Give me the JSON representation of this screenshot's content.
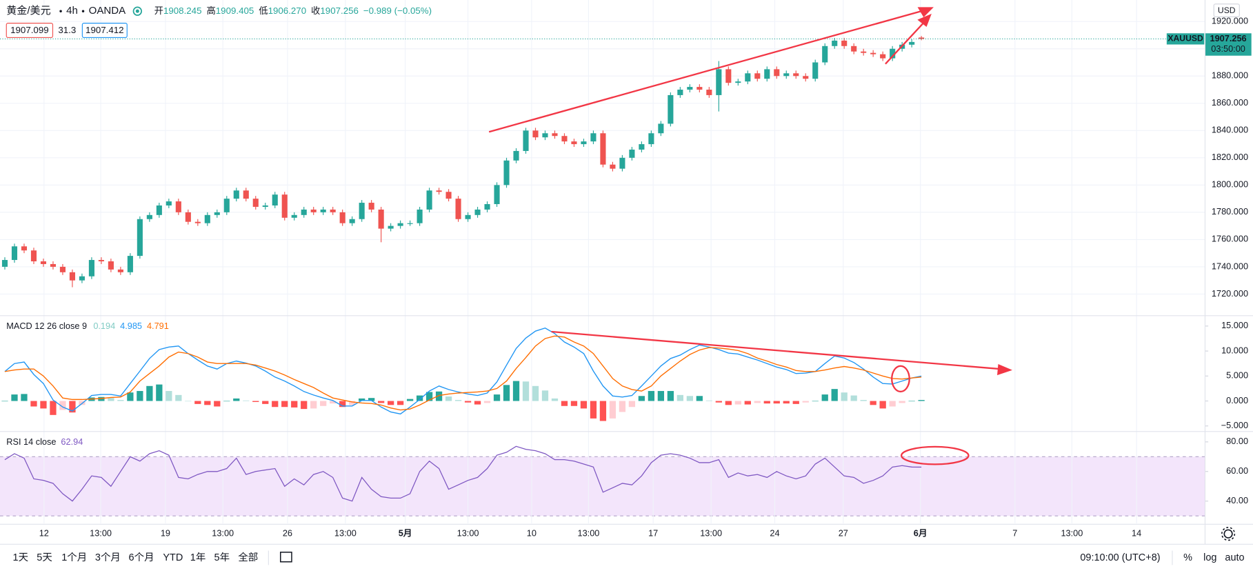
{
  "header": {
    "symbol": "黄金/美元",
    "interval": "4h",
    "source": "OANDA",
    "ohlc": [
      {
        "label": "开",
        "value": "1908.245"
      },
      {
        "label": "高",
        "value": "1909.405"
      },
      {
        "label": "低",
        "value": "1906.270"
      },
      {
        "label": "收",
        "value": "1907.256"
      }
    ],
    "change": "−0.989 (−0.05%)",
    "bid": "1907.099",
    "spread": "31.3",
    "ask": "1907.412"
  },
  "price_axis": {
    "currency": "USD",
    "symbol_tag": "XAUUSD",
    "countdown": "03:50:00"
  },
  "toolbar": {
    "ranges": [
      "1天",
      "5天",
      "1个月",
      "3个月",
      "6个月",
      "YTD",
      "1年",
      "5年",
      "全部"
    ],
    "time": "09:10:00 (UTC+8)",
    "options": [
      "%",
      "log",
      "auto"
    ]
  },
  "chart_data": [
    {
      "type": "candlestick",
      "up_color": "#26a69a",
      "down_color": "#ef5350",
      "grid": true,
      "xlim": [
        -0.5,
        124.4
      ],
      "xticks": [
        {
          "value": 4.06,
          "label": "12"
        },
        {
          "value": 9.94,
          "label": "13:00"
        },
        {
          "value": 16.65,
          "label": "19"
        },
        {
          "value": 22.6,
          "label": "13:00"
        },
        {
          "value": 29.3,
          "label": "26"
        },
        {
          "value": 35.3,
          "label": "13:00"
        },
        {
          "value": 41.5,
          "label": "5月"
        },
        {
          "value": 48.0,
          "label": "13:00"
        },
        {
          "value": 54.6,
          "label": "10"
        },
        {
          "value": 60.5,
          "label": "13:00"
        },
        {
          "value": 67.2,
          "label": "17"
        },
        {
          "value": 73.2,
          "label": "13:00"
        },
        {
          "value": 79.8,
          "label": "24"
        },
        {
          "value": 86.9,
          "label": "27"
        },
        {
          "value": 94.9,
          "label": "6月"
        },
        {
          "value": 104.7,
          "label": "7"
        },
        {
          "value": 110.6,
          "label": "13:00"
        },
        {
          "value": 117.3,
          "label": "14"
        }
      ],
      "ylim": [
        1705.3,
        1935.8
      ],
      "yticks": [
        {
          "value": 1720,
          "label": "1720.000"
        },
        {
          "value": 1740,
          "label": "1740.000"
        },
        {
          "value": 1760,
          "label": "1760.000"
        },
        {
          "value": 1780,
          "label": "1780.000"
        },
        {
          "value": 1800,
          "label": "1800.000"
        },
        {
          "value": 1820,
          "label": "1820.000"
        },
        {
          "value": 1840,
          "label": "1840.000"
        },
        {
          "value": 1860,
          "label": "1860.000"
        },
        {
          "value": 1880,
          "label": "1880.000"
        },
        {
          "value": 1900,
          "label": "1900.000"
        },
        {
          "value": 1920,
          "label": "1920.000"
        }
      ],
      "open": [
        1740,
        1745,
        1755,
        1752,
        1744,
        1742,
        1740,
        1736,
        1730,
        1733,
        1745,
        1744,
        1738,
        1736,
        1748,
        1775,
        1778,
        1785,
        1788,
        1780,
        1773,
        1772,
        1778,
        1780,
        1790,
        1796,
        1790,
        1784,
        1785,
        1793,
        1776,
        1778,
        1782,
        1780,
        1782,
        1780,
        1772,
        1775,
        1787,
        1782,
        1768,
        1770,
        1772,
        1772,
        1782,
        1796,
        1795,
        1790,
        1775,
        1778,
        1782,
        1786,
        1800,
        1818,
        1825,
        1840,
        1835,
        1838,
        1836,
        1832,
        1830,
        1832,
        1838,
        1815,
        1812,
        1820,
        1826,
        1830,
        1838,
        1845,
        1866,
        1870,
        1872,
        1870,
        1866,
        1885,
        1875,
        1876,
        1882,
        1878,
        1885,
        1880,
        1882,
        1880,
        1878,
        1890,
        1902,
        1906,
        1902,
        1898,
        1897,
        1896,
        1893,
        1900,
        1903,
        1908.245
      ],
      "high": [
        1747,
        1757,
        1757,
        1754,
        1746,
        1744,
        1742,
        1738,
        1735,
        1747,
        1747,
        1746,
        1740,
        1750,
        1777,
        1780,
        1787,
        1790,
        1790,
        1782,
        1775,
        1780,
        1782,
        1792,
        1798,
        1798,
        1792,
        1787,
        1795,
        1795,
        1780,
        1784,
        1784,
        1784,
        1784,
        1782,
        1777,
        1789,
        1789,
        1784,
        1772,
        1774,
        1774,
        1784,
        1798,
        1798,
        1797,
        1792,
        1780,
        1784,
        1788,
        1802,
        1820,
        1827,
        1842,
        1842,
        1840,
        1840,
        1838,
        1834,
        1834,
        1840,
        1840,
        1817,
        1822,
        1828,
        1832,
        1840,
        1847,
        1868,
        1872,
        1874,
        1874,
        1872,
        1891,
        1887,
        1878,
        1884,
        1884,
        1887,
        1887,
        1884,
        1884,
        1882,
        1892,
        1904,
        1908,
        1908,
        1904,
        1900,
        1899,
        1898,
        1902,
        1905,
        1907,
        1909.405
      ],
      "low": [
        1738,
        1743,
        1750,
        1742,
        1740,
        1738,
        1734,
        1725,
        1728,
        1731,
        1742,
        1736,
        1734,
        1734,
        1746,
        1773,
        1776,
        1783,
        1778,
        1771,
        1770,
        1770,
        1776,
        1778,
        1788,
        1788,
        1782,
        1782,
        1783,
        1774,
        1774,
        1776,
        1778,
        1778,
        1778,
        1770,
        1770,
        1773,
        1780,
        1758,
        1766,
        1768,
        1770,
        1770,
        1780,
        1793,
        1788,
        1773,
        1773,
        1776,
        1780,
        1784,
        1798,
        1816,
        1823,
        1833,
        1833,
        1834,
        1830,
        1828,
        1828,
        1830,
        1813,
        1810,
        1810,
        1818,
        1824,
        1828,
        1836,
        1843,
        1864,
        1868,
        1868,
        1864,
        1854,
        1873,
        1873,
        1874,
        1876,
        1876,
        1878,
        1878,
        1878,
        1876,
        1876,
        1888,
        1900,
        1900,
        1896,
        1895,
        1894,
        1891,
        1891,
        1898,
        1901,
        1906.27
      ],
      "close": [
        1745,
        1755,
        1752,
        1744,
        1742,
        1740,
        1736,
        1730,
        1733,
        1745,
        1744,
        1738,
        1736,
        1748,
        1775,
        1778,
        1785,
        1788,
        1780,
        1773,
        1772,
        1778,
        1780,
        1790,
        1796,
        1790,
        1784,
        1785,
        1793,
        1776,
        1778,
        1782,
        1780,
        1782,
        1780,
        1772,
        1775,
        1787,
        1782,
        1768,
        1770,
        1772,
        1772,
        1782,
        1796,
        1795,
        1790,
        1775,
        1778,
        1782,
        1786,
        1800,
        1818,
        1825,
        1840,
        1835,
        1838,
        1836,
        1832,
        1830,
        1832,
        1838,
        1815,
        1812,
        1820,
        1826,
        1830,
        1838,
        1845,
        1866,
        1870,
        1872,
        1870,
        1866,
        1885,
        1875,
        1876,
        1882,
        1878,
        1885,
        1880,
        1882,
        1880,
        1878,
        1890,
        1902,
        1906,
        1902,
        1898,
        1897,
        1896,
        1893,
        1900,
        1903,
        1905,
        1907.256
      ]
    },
    {
      "type": "combo",
      "title": "MACD 12 26 close 9",
      "ylim": [
        -6.12,
        16.76
      ],
      "yticks": [
        {
          "value": -5,
          "label": "−5.000"
        },
        {
          "value": 0,
          "label": "0.000"
        },
        {
          "value": 5,
          "label": "5.000"
        },
        {
          "value": 10,
          "label": "10.000"
        },
        {
          "value": 15,
          "label": "15.000"
        }
      ],
      "histogram": {
        "colors": [
          "#26a69a",
          "#b2dfdb",
          "#ff5252",
          "#ffcdd2"
        ],
        "label_color": "#80cbc4",
        "values": [
          0,
          1.3,
          1.4,
          -1.1,
          -1.5,
          -2.8,
          -1.8,
          -2.3,
          -0.8,
          0.7,
          0.8,
          0.6,
          0.2,
          1.7,
          2,
          3,
          3.3,
          2,
          1.2,
          0,
          -0.6,
          -0.8,
          -1.1,
          0,
          0.5,
          0.1,
          -0.2,
          -0.6,
          -1.2,
          -1.2,
          -1.3,
          -1.6,
          -1.5,
          -1,
          -0.5,
          -1.2,
          -0.8,
          0.5,
          0.6,
          -0.4,
          -0.8,
          -0.8,
          0.4,
          1.1,
          1.8,
          1.9,
          0.9,
          0.2,
          -0.3,
          -0.7,
          -0.4,
          1.3,
          3.2,
          4,
          3.9,
          3,
          2.1,
          0.5,
          -1,
          -1,
          -1.5,
          -3.5,
          -4,
          -3.5,
          -2.2,
          -1.2,
          1,
          2,
          2,
          2,
          1.2,
          1,
          1,
          0.1,
          -0.3,
          -0.8,
          -0.7,
          -0.7,
          -0.4,
          -0.5,
          -0.5,
          -0.5,
          -0.6,
          -0.3,
          0,
          1.3,
          2.4,
          1.7,
          1.1,
          0.2,
          -0.8,
          -1.5,
          -1.1,
          -0.4,
          0,
          0.194
        ]
      },
      "series": [
        {
          "color": "#2196f3",
          "values": [
            5.9,
            7.5,
            7.8,
            5.3,
            3.5,
            0.2,
            -1.2,
            -2,
            -0.5,
            1.1,
            1.3,
            1.3,
            1,
            3.5,
            6,
            8.5,
            10.3,
            10.8,
            11,
            9.5,
            8.2,
            7,
            6.4,
            7.5,
            8,
            7.6,
            7,
            6,
            4.8,
            4,
            3,
            1.9,
            1.2,
            0.6,
            0.1,
            -1,
            -1,
            0.1,
            0.1,
            -1.2,
            -2.2,
            -2.6,
            -1.2,
            0.3,
            2,
            3,
            2.3,
            1.8,
            1.4,
            1.1,
            1.6,
            3.8,
            7.2,
            10.5,
            12.6,
            14,
            14.6,
            13.5,
            11.8,
            10.8,
            9.5,
            6,
            3,
            1,
            0.8,
            1.1,
            3,
            5,
            7,
            8.5,
            9.2,
            10.3,
            11.2,
            10.8,
            10.3,
            9.6,
            9.4,
            8.8,
            8.2,
            7.5,
            6.8,
            6.3,
            5.5,
            5.6,
            5.9,
            7.5,
            9,
            8.6,
            7.7,
            6.4,
            4.8,
            3.5,
            3.4,
            4,
            4.6,
            4.985
          ]
        },
        {
          "color": "#ff6d00",
          "values": [
            5.9,
            6.2,
            6.4,
            6.4,
            5,
            3,
            0.6,
            0.3,
            0.3,
            0.4,
            0.5,
            0.7,
            0.8,
            1.8,
            4,
            5.5,
            7,
            8.8,
            9.8,
            9.5,
            8.8,
            7.8,
            7.5,
            7.5,
            7.5,
            7.5,
            7.2,
            6.6,
            6,
            5.2,
            4.3,
            3.5,
            2.7,
            1.6,
            0.6,
            0.2,
            -0.2,
            -0.4,
            -0.5,
            -0.8,
            -1.4,
            -1.8,
            -1.6,
            -0.8,
            0.2,
            1.1,
            1.4,
            1.6,
            1.7,
            1.8,
            2,
            2.5,
            4,
            6.5,
            8.7,
            11,
            12.5,
            13,
            12.8,
            11.8,
            11,
            9.5,
            7,
            4.5,
            3,
            2.3,
            2,
            3,
            5,
            6.5,
            8,
            9.3,
            10.2,
            10.7,
            10.6,
            10.4,
            10.1,
            9.5,
            8.6,
            8,
            7.3,
            6.8,
            6.1,
            5.9,
            5.9,
            6.2,
            6.6,
            6.9,
            6.6,
            6.2,
            5.6,
            5,
            4.5,
            4.4,
            4.6,
            4.791
          ]
        }
      ]
    },
    {
      "type": "line",
      "title": "RSI 14 close",
      "color": "#7e57c2",
      "band": [
        30,
        70
      ],
      "band_color": "#f3e5fb",
      "ylim": [
        24.9,
        85.9
      ],
      "yticks": [
        {
          "value": 40,
          "label": "40.00"
        },
        {
          "value": 60,
          "label": "60.00"
        },
        {
          "value": 80,
          "label": "80.00"
        }
      ],
      "values": [
        68,
        72,
        69,
        55,
        54,
        52,
        45,
        40,
        48,
        57,
        56,
        50,
        60,
        70,
        67,
        72,
        74,
        71,
        56,
        55,
        58,
        60,
        60,
        62,
        69,
        58,
        60,
        61,
        62,
        50,
        55,
        51,
        58,
        60,
        56,
        42,
        40,
        56,
        48,
        43,
        42,
        42,
        45,
        60,
        67,
        62,
        48,
        51,
        54,
        56,
        62,
        71,
        73,
        77,
        75,
        74,
        72,
        68,
        68,
        67,
        65,
        63,
        46,
        49,
        52,
        51,
        57,
        66,
        71,
        72,
        71,
        69,
        66,
        66,
        68,
        56,
        59,
        57,
        58,
        56,
        60,
        57,
        55,
        57,
        65,
        69,
        63,
        57,
        56,
        52,
        54,
        57,
        63,
        64,
        63,
        62.94
      ]
    }
  ]
}
